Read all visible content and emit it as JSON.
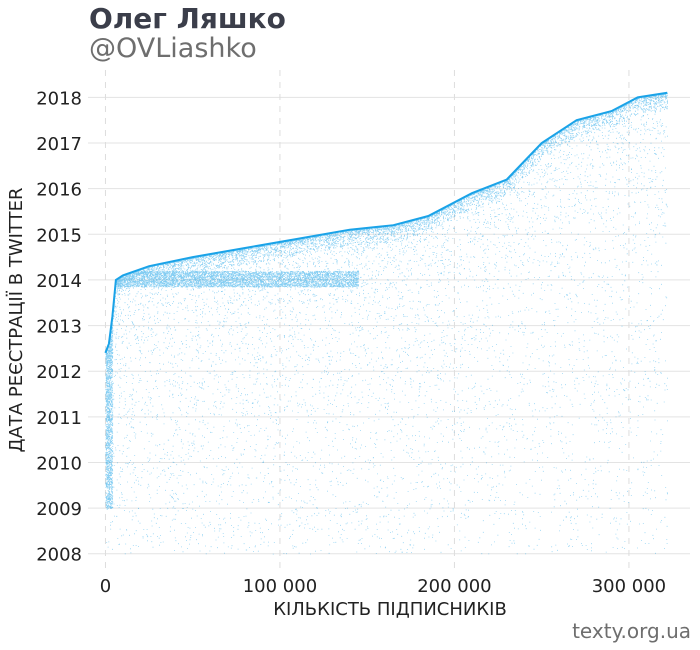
{
  "header": {
    "title": "Олег Ляшко",
    "subtitle": "@OVLiashko"
  },
  "credit": "texty.org.ua",
  "chart_data": {
    "type": "scatter",
    "xlabel": "КІЛЬКІСТЬ ПІДПИСНИКІВ",
    "ylabel": "ДАТА РЕЄСТРАЦІЇ В TWITTER",
    "xlim": [
      -10000,
      335000
    ],
    "ylim": [
      2007.6,
      2018.6
    ],
    "x_ticks": [
      0,
      100000,
      200000,
      300000
    ],
    "x_tick_labels": [
      "0",
      "100 000",
      "200 000",
      "300 000"
    ],
    "y_ticks": [
      2008,
      2009,
      2010,
      2011,
      2012,
      2013,
      2014,
      2015,
      2016,
      2017,
      2018
    ],
    "y_tick_labels": [
      "2008",
      "2009",
      "2010",
      "2011",
      "2012",
      "2013",
      "2014",
      "2015",
      "2016",
      "2017",
      "2018"
    ],
    "grid": true,
    "point_color": "#1aa3e8",
    "upper_envelope": [
      {
        "x": 0,
        "y": 2012.4
      },
      {
        "x": 2000,
        "y": 2012.6
      },
      {
        "x": 4000,
        "y": 2013.2
      },
      {
        "x": 6000,
        "y": 2014.0
      },
      {
        "x": 10000,
        "y": 2014.1
      },
      {
        "x": 25000,
        "y": 2014.3
      },
      {
        "x": 50000,
        "y": 2014.5
      },
      {
        "x": 80000,
        "y": 2014.7
      },
      {
        "x": 110000,
        "y": 2014.9
      },
      {
        "x": 140000,
        "y": 2015.1
      },
      {
        "x": 165000,
        "y": 2015.2
      },
      {
        "x": 185000,
        "y": 2015.4
      },
      {
        "x": 210000,
        "y": 2015.9
      },
      {
        "x": 230000,
        "y": 2016.2
      },
      {
        "x": 250000,
        "y": 2017.0
      },
      {
        "x": 270000,
        "y": 2017.5
      },
      {
        "x": 290000,
        "y": 2017.7
      },
      {
        "x": 305000,
        "y": 2018.0
      },
      {
        "x": 322000,
        "y": 2018.1
      }
    ],
    "approx_points": 320000
  }
}
